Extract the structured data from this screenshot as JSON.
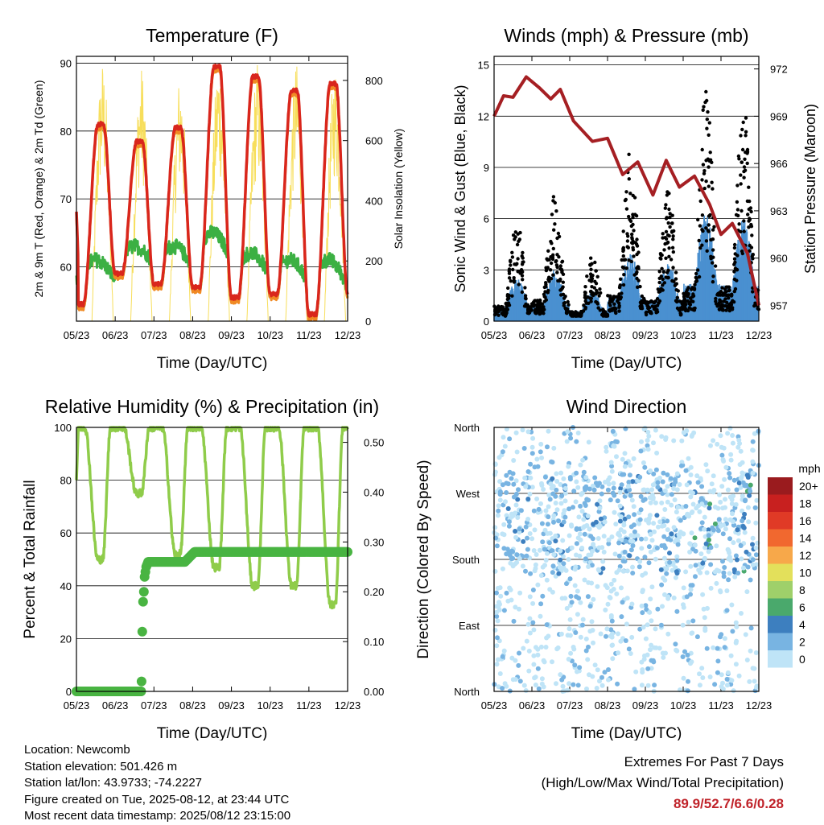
{
  "x_ticks": [
    "05/23",
    "06/23",
    "07/23",
    "08/23",
    "09/23",
    "10/23",
    "11/23",
    "12/23"
  ],
  "colors": {
    "temp": "#d9261c",
    "temp9m": "#f08a24",
    "dewpoint": "#3cb043",
    "solar": "#f7de5b",
    "gust": "#000000",
    "wind": "#4a90d0",
    "pressure": "#a51f23",
    "rh": "#8fcc4a",
    "precip": "#49b442",
    "extremes": "#c0232a"
  },
  "chart_data": [
    {
      "id": "temperature",
      "type": "line",
      "title": "Temperature (F)",
      "xlabel": "Time (Day/UTC)",
      "ylabel": "2m & 9m T (Red, Orange) & 2m Td (Green)",
      "y2label": "Solar Insolation (Yellow)",
      "ylim": [
        52,
        91
      ],
      "y_ticks": [
        60,
        70,
        80,
        90
      ],
      "y2lim": [
        0,
        880
      ],
      "y2_ticks": [
        0,
        200,
        400,
        600,
        800
      ],
      "grid": true,
      "days": [
        {
          "min": 54.5,
          "max": 81.0,
          "td_min": 55,
          "td_max": 61,
          "solar_max": 870
        },
        {
          "min": 59.0,
          "max": 78.5,
          "td_min": 58,
          "td_max": 63,
          "solar_max": 850
        },
        {
          "min": 57.5,
          "max": 80.5,
          "td_min": 57,
          "td_max": 63,
          "solar_max": 820
        },
        {
          "min": 57.0,
          "max": 89.5,
          "td_min": 57,
          "td_max": 65,
          "solar_max": 880
        },
        {
          "min": 55.5,
          "max": 88.0,
          "td_min": 55,
          "td_max": 62,
          "solar_max": 870
        },
        {
          "min": 56.0,
          "max": 86.0,
          "td_min": 54,
          "td_max": 61,
          "solar_max": 860
        },
        {
          "min": 53.0,
          "max": 87.0,
          "td_min": 53,
          "td_max": 61,
          "solar_max": 860
        },
        {
          "min": 56.0,
          "max": 89.9,
          "td_min": 55,
          "td_max": 63,
          "solar_max": 860
        }
      ]
    },
    {
      "id": "winds",
      "type": "scatter",
      "title": "Winds (mph) & Pressure (mb)",
      "xlabel": "Time (Day/UTC)",
      "ylabel": "Sonic Wind & Gust (Blue, Black)",
      "y2label": "Station Pressure (Maroon)",
      "ylim": [
        0,
        15.5
      ],
      "y_ticks": [
        0,
        3,
        6,
        9,
        12,
        15
      ],
      "y2lim": [
        956.0,
        972.8
      ],
      "y2_ticks": [
        957,
        960,
        963,
        966,
        969,
        972
      ],
      "grid": true,
      "gust_peaks": [
        6.0,
        8.2,
        3.8,
        10.0,
        8.0,
        13.5,
        13.3,
        8.5
      ],
      "wind_peaks": [
        2.6,
        3.0,
        1.8,
        4.0,
        3.5,
        6.3,
        6.0,
        3.5
      ],
      "pressure": [
        {
          "x": 0.0,
          "y": 969.0
        },
        {
          "x": 0.25,
          "y": 970.3
        },
        {
          "x": 0.5,
          "y": 970.2
        },
        {
          "x": 0.85,
          "y": 971.5
        },
        {
          "x": 1.2,
          "y": 970.8
        },
        {
          "x": 1.5,
          "y": 970.1
        },
        {
          "x": 1.75,
          "y": 970.7
        },
        {
          "x": 2.1,
          "y": 968.7
        },
        {
          "x": 2.6,
          "y": 967.4
        },
        {
          "x": 3.0,
          "y": 967.6
        },
        {
          "x": 3.4,
          "y": 965.3
        },
        {
          "x": 3.8,
          "y": 966.1
        },
        {
          "x": 4.2,
          "y": 964.0
        },
        {
          "x": 4.55,
          "y": 966.2
        },
        {
          "x": 4.9,
          "y": 964.5
        },
        {
          "x": 5.3,
          "y": 965.2
        },
        {
          "x": 5.7,
          "y": 963.4
        },
        {
          "x": 6.0,
          "y": 961.5
        },
        {
          "x": 6.3,
          "y": 962.2
        },
        {
          "x": 6.7,
          "y": 960.3
        },
        {
          "x": 7.0,
          "y": 957.0
        }
      ]
    },
    {
      "id": "humidity",
      "type": "line",
      "title": "Relative Humidity (%) & Precipitation (in)",
      "xlabel": "Time (Day/UTC)",
      "ylabel": "Percent & Total Rainfall",
      "ylim": [
        0,
        100
      ],
      "y_ticks": [
        0,
        20,
        40,
        60,
        80,
        100
      ],
      "y2lim": [
        0,
        0.53
      ],
      "y2_ticks": [
        "0.00",
        "0.10",
        "0.20",
        "0.30",
        "0.40",
        "0.50"
      ],
      "grid": true,
      "rh_min": [
        50,
        75,
        52,
        47,
        40,
        40,
        33,
        35
      ],
      "precip": [
        {
          "x": 0.0,
          "y": 0.0
        },
        {
          "x": 1.67,
          "y": 0.0
        },
        {
          "x": 1.68,
          "y": 0.02
        },
        {
          "x": 1.7,
          "y": 0.12
        },
        {
          "x": 1.72,
          "y": 0.18
        },
        {
          "x": 1.74,
          "y": 0.2
        },
        {
          "x": 1.76,
          "y": 0.23
        },
        {
          "x": 1.8,
          "y": 0.25
        },
        {
          "x": 1.85,
          "y": 0.26
        },
        {
          "x": 2.8,
          "y": 0.26
        },
        {
          "x": 3.05,
          "y": 0.28
        },
        {
          "x": 7.0,
          "y": 0.28
        }
      ],
      "total_precip": 0.28
    },
    {
      "id": "wind-direction",
      "type": "scatter",
      "title": "Wind Direction",
      "xlabel": "Time (Day/UTC)",
      "ylabel": "Direction (Colored By Speed)",
      "y_ticks": [
        "North",
        "East",
        "South",
        "West",
        "North"
      ],
      "y_tick_degrees": [
        0,
        90,
        180,
        270,
        360
      ],
      "grid": true,
      "legend_title": "mph",
      "legend_position": "right",
      "legend": [
        {
          "label": "20+",
          "color": "#9a1b1e"
        },
        {
          "label": "18",
          "color": "#c8201f"
        },
        {
          "label": "16",
          "color": "#e03a26"
        },
        {
          "label": "14",
          "color": "#f1682f"
        },
        {
          "label": "12",
          "color": "#f7a84a"
        },
        {
          "label": "10",
          "color": "#e3e05b"
        },
        {
          "label": "8",
          "color": "#9fd06a"
        },
        {
          "label": "6",
          "color": "#4aa96c"
        },
        {
          "label": "4",
          "color": "#3d7fbf"
        },
        {
          "label": "2",
          "color": "#78b4e2"
        },
        {
          "label": "0",
          "color": "#bfe4f7"
        }
      ]
    }
  ],
  "info": {
    "location": "Location: Newcomb",
    "elevation": "Station elevation: 501.426 m",
    "latlon": "Station lat/lon: 43.9733; -74.2227",
    "created": "Figure created on Tue, 2025-08-12, at 23:44 UTC",
    "recent": "Most recent data timestamp: 2025/08/12 23:15:00"
  },
  "extremes": {
    "title": "Extremes For Past 7 Days",
    "subtitle": "(High/Low/Max Wind/Total Precipitation)",
    "values": "89.9/52.7/6.6/0.28"
  }
}
